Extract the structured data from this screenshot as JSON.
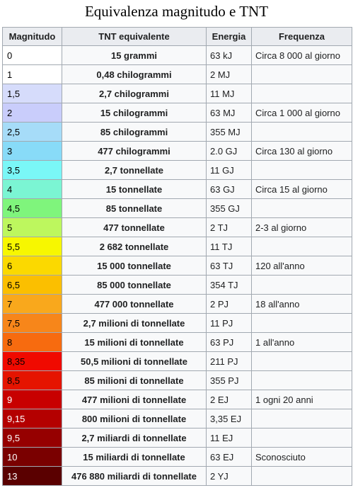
{
  "caption": "Equivalenza magnitudo e TNT",
  "headers": [
    "Magnitudo",
    "TNT equivalente",
    "Energia",
    "Frequenza"
  ],
  "rows": [
    {
      "mag": "0",
      "tnt": "15 grammi",
      "energy": "63 kJ",
      "freq": "Circa 8 000 al giorno",
      "color": "#ffffff",
      "text_color": "#000000"
    },
    {
      "mag": "1",
      "tnt": "0,48 chilogrammi",
      "energy": "2 MJ",
      "freq": "",
      "color": "#ffffff",
      "text_color": "#000000"
    },
    {
      "mag": "1,5",
      "tnt": "2,7 chilogrammi",
      "energy": "11 MJ",
      "freq": "",
      "color": "#d6dcfb",
      "text_color": "#000000"
    },
    {
      "mag": "2",
      "tnt": "15 chilogrammi",
      "energy": "63 MJ",
      "freq": "Circa 1 000 al giorno",
      "color": "#c9cdfb",
      "text_color": "#000000"
    },
    {
      "mag": "2,5",
      "tnt": "85 chilogrammi",
      "energy": "355 MJ",
      "freq": "",
      "color": "#a6dcf8",
      "text_color": "#000000"
    },
    {
      "mag": "3",
      "tnt": "477 chilogrammi",
      "energy": "2.0 GJ",
      "freq": "Circa 130 al giorno",
      "color": "#88dbf8",
      "text_color": "#000000"
    },
    {
      "mag": "3,5",
      "tnt": "2,7 tonnellate",
      "energy": "11 GJ",
      "freq": "",
      "color": "#7af7f7",
      "text_color": "#000000"
    },
    {
      "mag": "4",
      "tnt": "15 tonnellate",
      "energy": "63 GJ",
      "freq": "Circa 15 al giorno",
      "color": "#7bf5d3",
      "text_color": "#000000"
    },
    {
      "mag": "4,5",
      "tnt": "85 tonnellate",
      "energy": "355 GJ",
      "freq": "",
      "color": "#7ff57c",
      "text_color": "#000000"
    },
    {
      "mag": "5",
      "tnt": "477 tonnellate",
      "energy": "2 TJ",
      "freq": "2-3 al giorno",
      "color": "#bdf75e",
      "text_color": "#000000"
    },
    {
      "mag": "5,5",
      "tnt": "2 682 tonnellate",
      "energy": "11 TJ",
      "freq": "",
      "color": "#f7f700",
      "text_color": "#000000"
    },
    {
      "mag": "6",
      "tnt": "15 000 tonnellate",
      "energy": "63 TJ",
      "freq": "120 all'anno",
      "color": "#fbd900",
      "text_color": "#000000"
    },
    {
      "mag": "6,5",
      "tnt": "85 000 tonnellate",
      "energy": "354 TJ",
      "freq": "",
      "color": "#fbbf00",
      "text_color": "#000000"
    },
    {
      "mag": "7",
      "tnt": "477 000 tonnellate",
      "energy": "2 PJ",
      "freq": "18 all'anno",
      "color": "#f9a81c",
      "text_color": "#000000"
    },
    {
      "mag": "7,5",
      "tnt": "2,7 milioni di tonnellate",
      "energy": "11 PJ",
      "freq": "",
      "color": "#f7861a",
      "text_color": "#000000"
    },
    {
      "mag": "8",
      "tnt": "15 milioni di tonnellate",
      "energy": "63 PJ",
      "freq": "1 all'anno",
      "color": "#f76b0f",
      "text_color": "#000000"
    },
    {
      "mag": "8,35",
      "tnt": "50,5 milioni di tonnellate",
      "energy": "211 PJ",
      "freq": "",
      "color": "#f00a00",
      "text_color": "#000000"
    },
    {
      "mag": "8,5",
      "tnt": "85 milioni di tonnellate",
      "energy": "355 PJ",
      "freq": "",
      "color": "#e51400",
      "text_color": "#000000"
    },
    {
      "mag": "9",
      "tnt": "477 milioni di tonnellate",
      "energy": "2 EJ",
      "freq": "1 ogni 20 anni",
      "color": "#c80000",
      "text_color": "#ffffff"
    },
    {
      "mag": "9,15",
      "tnt": "800 milioni di tonnellate",
      "energy": "3,35 EJ",
      "freq": "",
      "color": "#b40000",
      "text_color": "#ffffff"
    },
    {
      "mag": "9,5",
      "tnt": "2,7 miliardi di tonnellate",
      "energy": "11 EJ",
      "freq": "",
      "color": "#960000",
      "text_color": "#ffffff"
    },
    {
      "mag": "10",
      "tnt": "15 miliardi di tonnellate",
      "energy": "63 EJ",
      "freq": "Sconosciuto",
      "color": "#7a0000",
      "text_color": "#ffffff"
    },
    {
      "mag": "13",
      "tnt": "476 880 miliardi di tonnellate",
      "energy": "2 YJ",
      "freq": "",
      "color": "#5a0000",
      "text_color": "#ffffff"
    }
  ]
}
